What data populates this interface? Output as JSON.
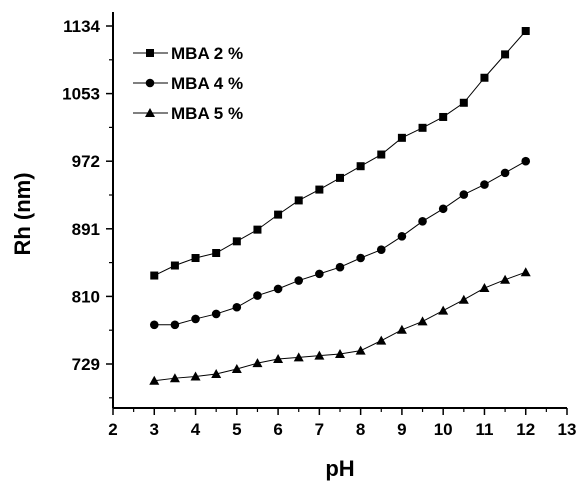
{
  "chart_data": {
    "type": "line",
    "xlabel": "pH",
    "ylabel": "Rh (nm)",
    "xlim": [
      2,
      13
    ],
    "ylim": [
      708,
      1134
    ],
    "x_ticks": [
      "2",
      "3",
      "4",
      "5",
      "6",
      "7",
      "8",
      "9",
      "10",
      "11",
      "12",
      "13"
    ],
    "y_ticks": [
      "729",
      "810",
      "891",
      "972",
      "1053",
      "1134"
    ],
    "legend_position": "top-left",
    "grid": false,
    "x": [
      3,
      3.5,
      4,
      4.5,
      5,
      5.5,
      6,
      6.5,
      7,
      7.5,
      8,
      8.5,
      9,
      9.5,
      10,
      10.5,
      11,
      11.5,
      12
    ],
    "series": [
      {
        "name": "MBA 2 %",
        "marker": "square",
        "values": [
          835,
          847,
          856,
          862,
          876,
          890,
          908,
          925,
          938,
          952,
          966,
          980,
          1000,
          1012,
          1025,
          1042,
          1072,
          1100,
          1128
        ]
      },
      {
        "name": "MBA 4 %",
        "marker": "circle",
        "values": [
          776,
          776,
          783,
          789,
          797,
          811,
          819,
          829,
          837,
          845,
          856,
          866,
          882,
          900,
          915,
          932,
          944,
          958,
          972
        ]
      },
      {
        "name": "MBA 5 %",
        "marker": "triangle",
        "values": [
          709,
          712,
          714,
          717,
          723,
          730,
          735,
          737,
          739,
          741,
          745,
          757,
          770,
          780,
          793,
          806,
          820,
          830,
          839
        ]
      }
    ]
  }
}
